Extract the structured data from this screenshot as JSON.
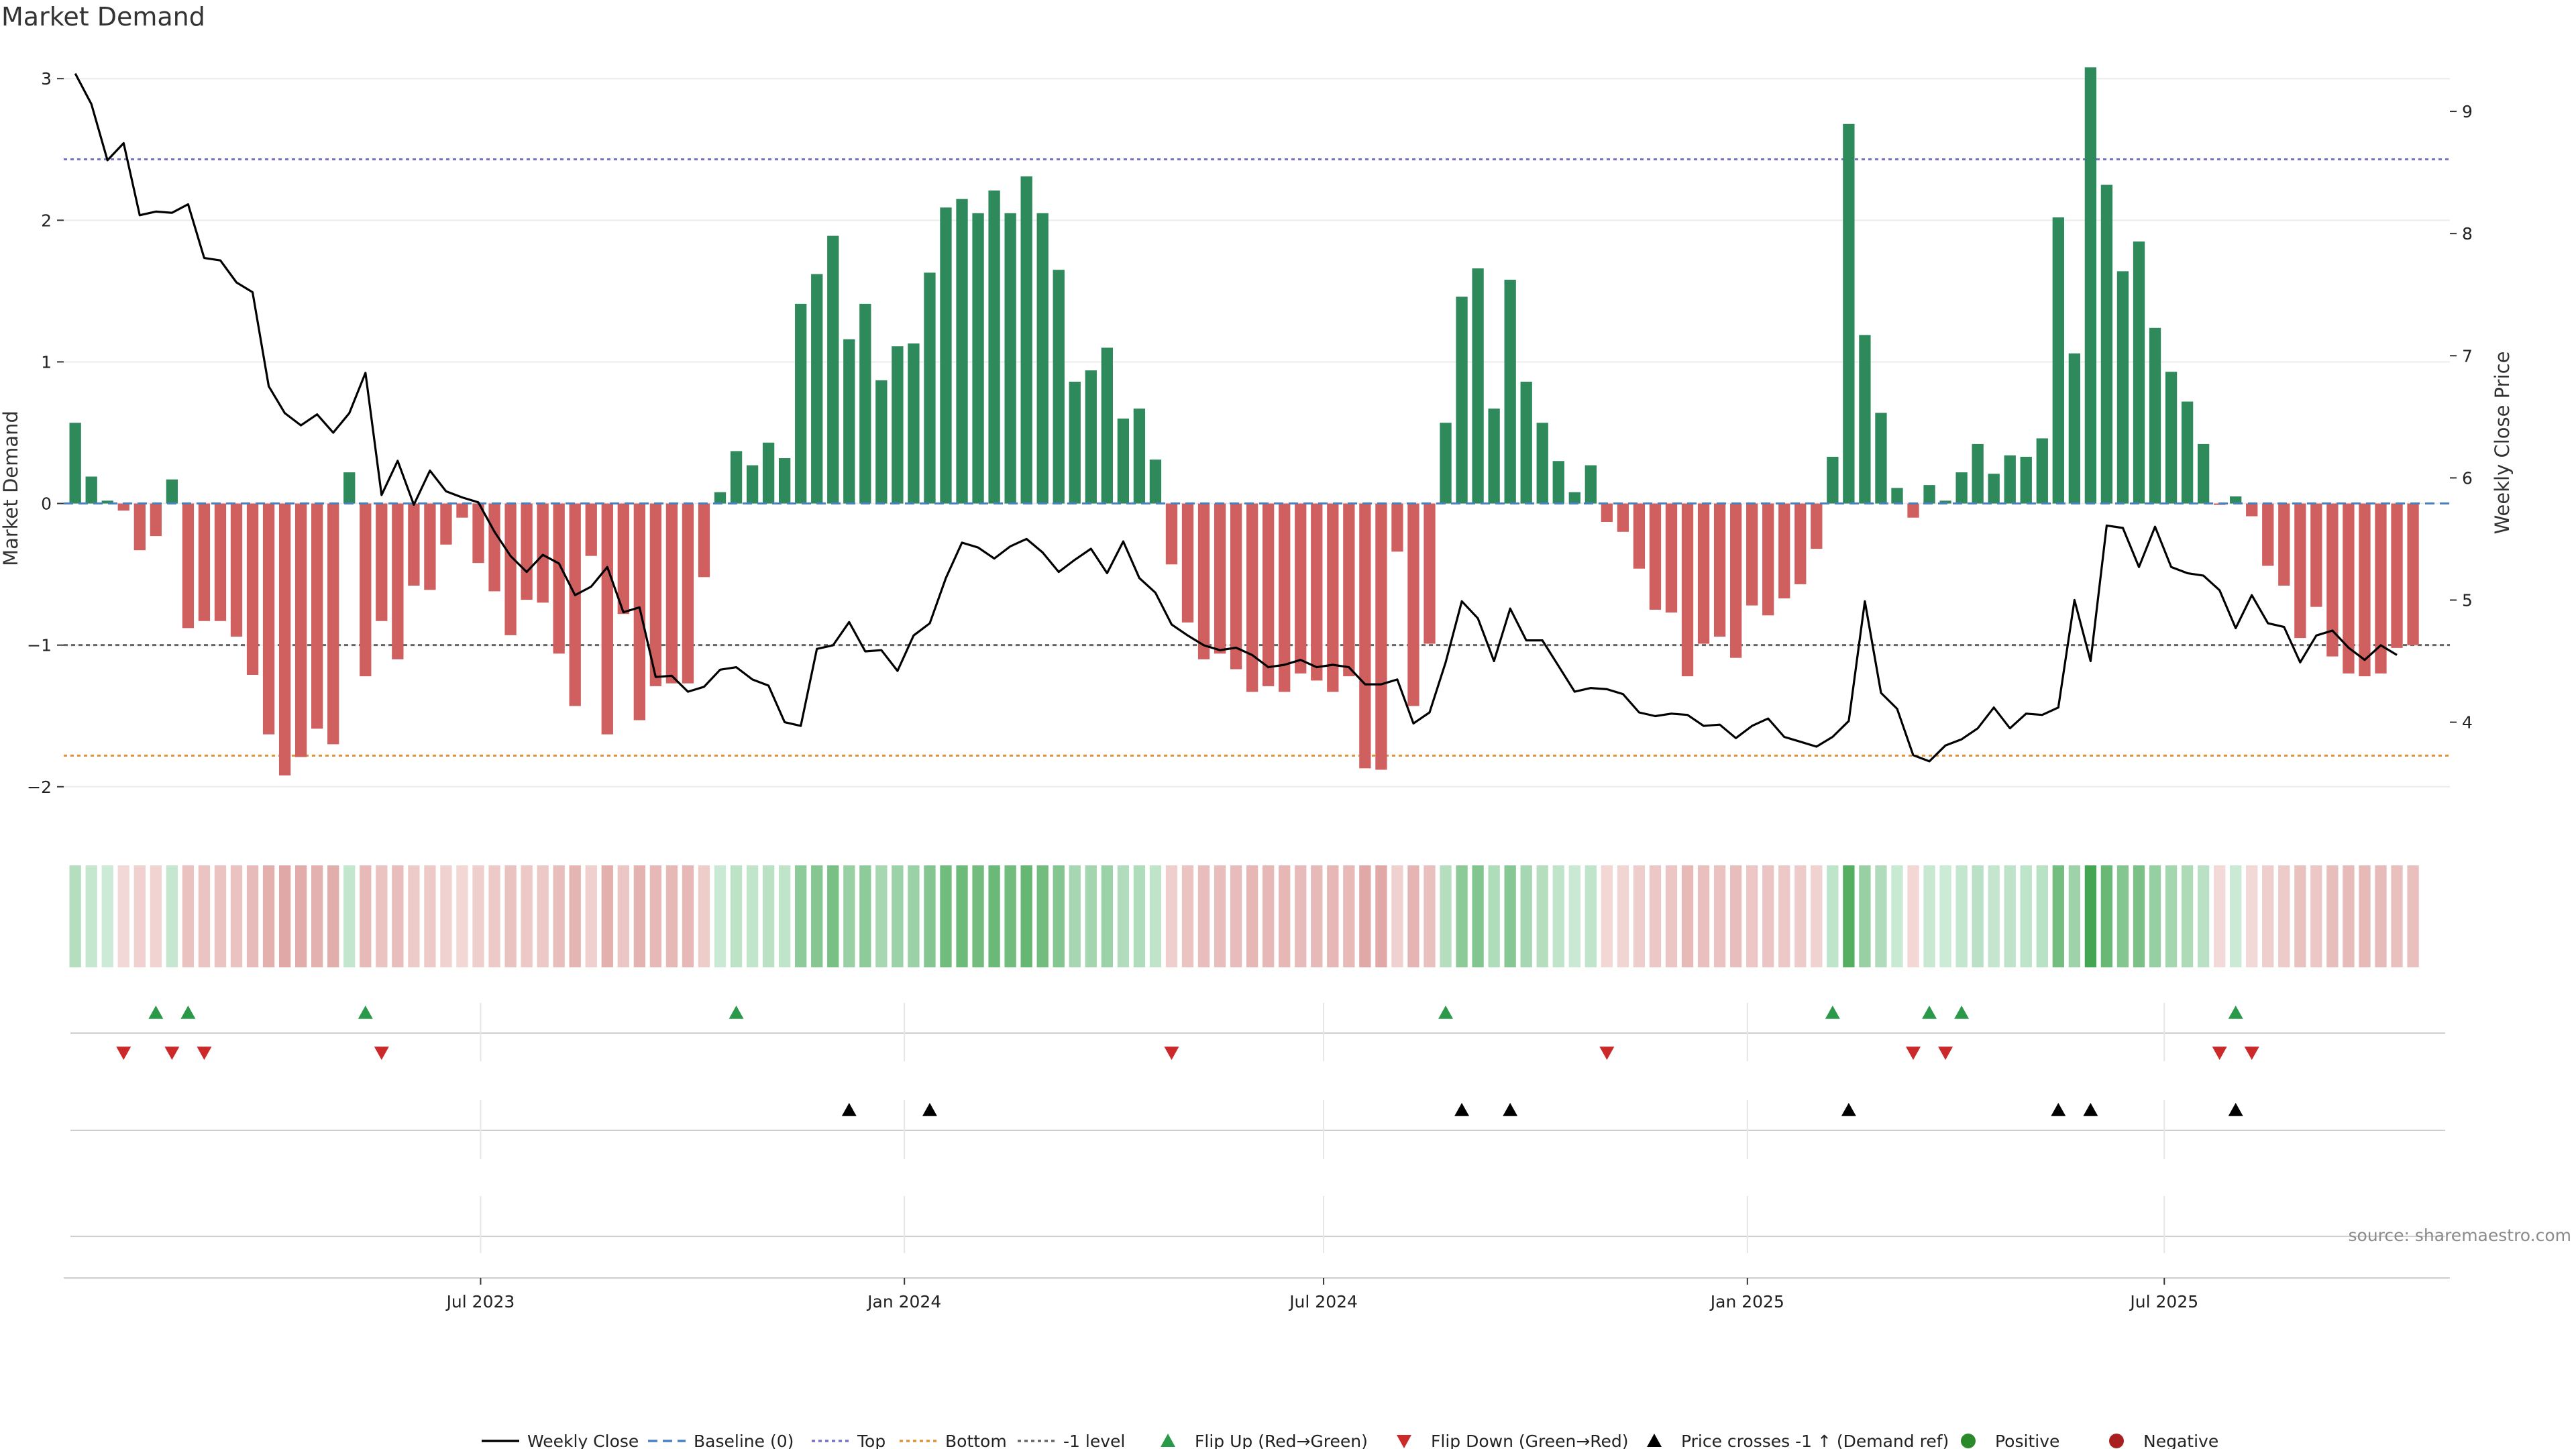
{
  "page": {
    "source_note": "source: sharemaestro.com"
  },
  "chart_data": {
    "type": "bar+line",
    "title": "Market Demand",
    "ylabel_left": "Market Demand",
    "ylabel_right": "Weekly Close Price",
    "ylim_left": [
      -2.2,
      3.2
    ],
    "yticks_left": [
      {
        "v": 3,
        "label": "3"
      },
      {
        "v": 2,
        "label": "2"
      },
      {
        "v": 1,
        "label": "1"
      },
      {
        "v": 0,
        "label": "0"
      },
      {
        "v": -1,
        "label": "−1"
      },
      {
        "v": -2,
        "label": "−2"
      }
    ],
    "ylim_right": [
      3.24,
      9.5
    ],
    "yticks_right": [
      {
        "v": 9,
        "label": "9"
      },
      {
        "v": 8,
        "label": "8"
      },
      {
        "v": 7,
        "label": "7"
      },
      {
        "v": 6,
        "label": "6"
      },
      {
        "v": 5,
        "label": "5"
      },
      {
        "v": 4,
        "label": "4"
      }
    ],
    "x_dates": {
      "start": "2023-01-06",
      "interval_days": 7,
      "xlim": [
        "2023-01-01",
        "2025-11-02"
      ],
      "ticks": [
        {
          "date": "2023-07-01",
          "label": "Jul 2023"
        },
        {
          "date": "2024-01-01",
          "label": "Jan 2024"
        },
        {
          "date": "2024-07-01",
          "label": "Jul 2024"
        },
        {
          "date": "2025-01-01",
          "label": "Jan 2025"
        },
        {
          "date": "2025-07-01",
          "label": "Jul 2025"
        }
      ]
    },
    "demand": [
      0.57,
      0.19,
      0.02,
      -0.05,
      -0.33,
      -0.23,
      0.17,
      -0.88,
      -0.83,
      -0.83,
      -0.94,
      -1.21,
      -1.63,
      -1.92,
      -1.79,
      -1.59,
      -1.7,
      0.22,
      -1.22,
      -0.83,
      -1.1,
      -0.58,
      -0.61,
      -0.29,
      -0.1,
      -0.42,
      -0.62,
      -0.93,
      -0.68,
      -0.7,
      -1.06,
      -1.43,
      -0.37,
      -1.63,
      -0.78,
      -1.53,
      -1.29,
      -1.27,
      -1.27,
      -0.52,
      0.08,
      0.37,
      0.27,
      0.43,
      0.32,
      1.41,
      1.62,
      1.89,
      1.16,
      1.41,
      0.87,
      1.11,
      1.13,
      1.63,
      2.09,
      2.15,
      2.05,
      2.21,
      2.05,
      2.31,
      2.05,
      1.65,
      0.86,
      0.94,
      1.1,
      0.6,
      0.67,
      0.31,
      -0.43,
      -0.84,
      -1.1,
      -1.06,
      -1.17,
      -1.33,
      -1.29,
      -1.33,
      -1.2,
      -1.25,
      -1.33,
      -1.22,
      -1.87,
      -1.88,
      -0.34,
      -1.43,
      -0.99,
      0.57,
      1.46,
      1.66,
      0.67,
      1.58,
      0.86,
      0.57,
      0.3,
      0.08,
      0.27,
      -0.13,
      -0.2,
      -0.46,
      -0.75,
      -0.77,
      -1.22,
      -0.99,
      -0.94,
      -1.09,
      -0.72,
      -0.79,
      -0.67,
      -0.57,
      -0.32,
      0.33,
      2.68,
      1.19,
      0.64,
      0.11,
      -0.1,
      0.13,
      0.02,
      0.22,
      0.42,
      0.21,
      0.34,
      0.33,
      0.46,
      2.02,
      1.06,
      3.08,
      2.25,
      1.64,
      1.85,
      1.24,
      0.93,
      0.72,
      0.42,
      -0.01,
      0.05,
      -0.09,
      -0.44,
      -0.58,
      -0.95,
      -0.73,
      -1.08,
      -1.2,
      -1.22,
      -1.2,
      -1.02,
      -1.0
    ],
    "close": [
      9.31,
      9.06,
      8.6,
      8.74,
      8.15,
      8.18,
      8.17,
      8.24,
      7.8,
      7.78,
      7.6,
      7.52,
      6.75,
      6.53,
      6.43,
      6.52,
      6.37,
      6.53,
      6.86,
      5.86,
      6.14,
      5.78,
      6.06,
      5.89,
      5.84,
      5.8,
      5.56,
      5.36,
      5.23,
      5.37,
      5.3,
      5.04,
      5.11,
      5.27,
      4.9,
      4.94,
      4.37,
      4.38,
      4.25,
      4.29,
      4.43,
      4.45,
      4.35,
      4.3,
      4.0,
      3.97,
      4.6,
      4.63,
      4.82,
      4.58,
      4.59,
      4.42,
      4.71,
      4.81,
      5.18,
      5.47,
      5.43,
      5.34,
      5.44,
      5.5,
      5.39,
      5.23,
      5.33,
      5.42,
      5.22,
      5.48,
      5.18,
      5.06,
      4.8,
      4.71,
      4.63,
      4.59,
      4.61,
      4.55,
      4.45,
      4.47,
      4.51,
      4.45,
      4.47,
      4.45,
      4.31,
      4.31,
      4.35,
      3.99,
      4.08,
      4.49,
      4.99,
      4.85,
      4.5,
      4.93,
      4.67,
      4.67,
      4.46,
      4.25,
      4.28,
      4.27,
      4.23,
      4.08,
      4.05,
      4.07,
      4.06,
      3.97,
      3.98,
      3.87,
      3.97,
      4.03,
      3.88,
      3.84,
      3.8,
      3.88,
      4.01,
      4.99,
      4.24,
      4.11,
      3.73,
      3.68,
      3.81,
      3.86,
      3.95,
      4.12,
      3.95,
      4.07,
      4.06,
      4.12,
      5.0,
      4.5,
      5.61,
      5.59,
      5.27,
      5.6,
      5.27,
      5.22,
      5.2,
      5.08,
      4.77,
      5.04,
      4.81,
      4.78,
      4.49,
      4.71,
      4.75,
      4.61,
      4.51,
      4.63,
      4.55
    ],
    "levels": {
      "top": {
        "value": 2.43,
        "label": "Top",
        "color": "#7570c8"
      },
      "bottom": {
        "value": -1.78,
        "label": "Bottom",
        "color": "#e0903a"
      },
      "minus_one": {
        "value": -1.0,
        "label": "-1 level",
        "color": "#666666"
      },
      "baseline": {
        "value": 0,
        "label": "Baseline (0)",
        "color": "#4a7fc0"
      }
    },
    "flip_up_idx": [
      5,
      7,
      18,
      41,
      85,
      109,
      115,
      117,
      134
    ],
    "flip_down_idx": [
      3,
      6,
      8,
      19,
      68,
      95,
      114,
      116,
      133,
      135
    ],
    "cross_idx": [
      48,
      53,
      86,
      89,
      110,
      123,
      125,
      134
    ],
    "colors": {
      "positive": "#2e8a5a",
      "negative": "#d06060",
      "line": "#000000",
      "flip_up": "#2a9a4a",
      "flip_down": "#cc2a2a",
      "cross": "#000000",
      "dot_positive": "#2a8a2a",
      "dot_negative": "#a82020"
    },
    "legend": [
      {
        "key": "close",
        "label": "Weekly Close"
      },
      {
        "key": "baseline",
        "label": "Baseline (0)"
      },
      {
        "key": "top",
        "label": "Top"
      },
      {
        "key": "bottom",
        "label": "Bottom"
      },
      {
        "key": "minus_one",
        "label": "-1 level"
      },
      {
        "key": "flip_up",
        "label": "Flip Up (Red→Green)"
      },
      {
        "key": "flip_down",
        "label": "Flip Down (Green→Red)"
      },
      {
        "key": "cross",
        "label": "Price crosses -1 ↑ (Demand ref)"
      },
      {
        "key": "positive",
        "label": "Positive"
      },
      {
        "key": "negative",
        "label": "Negative"
      }
    ]
  }
}
